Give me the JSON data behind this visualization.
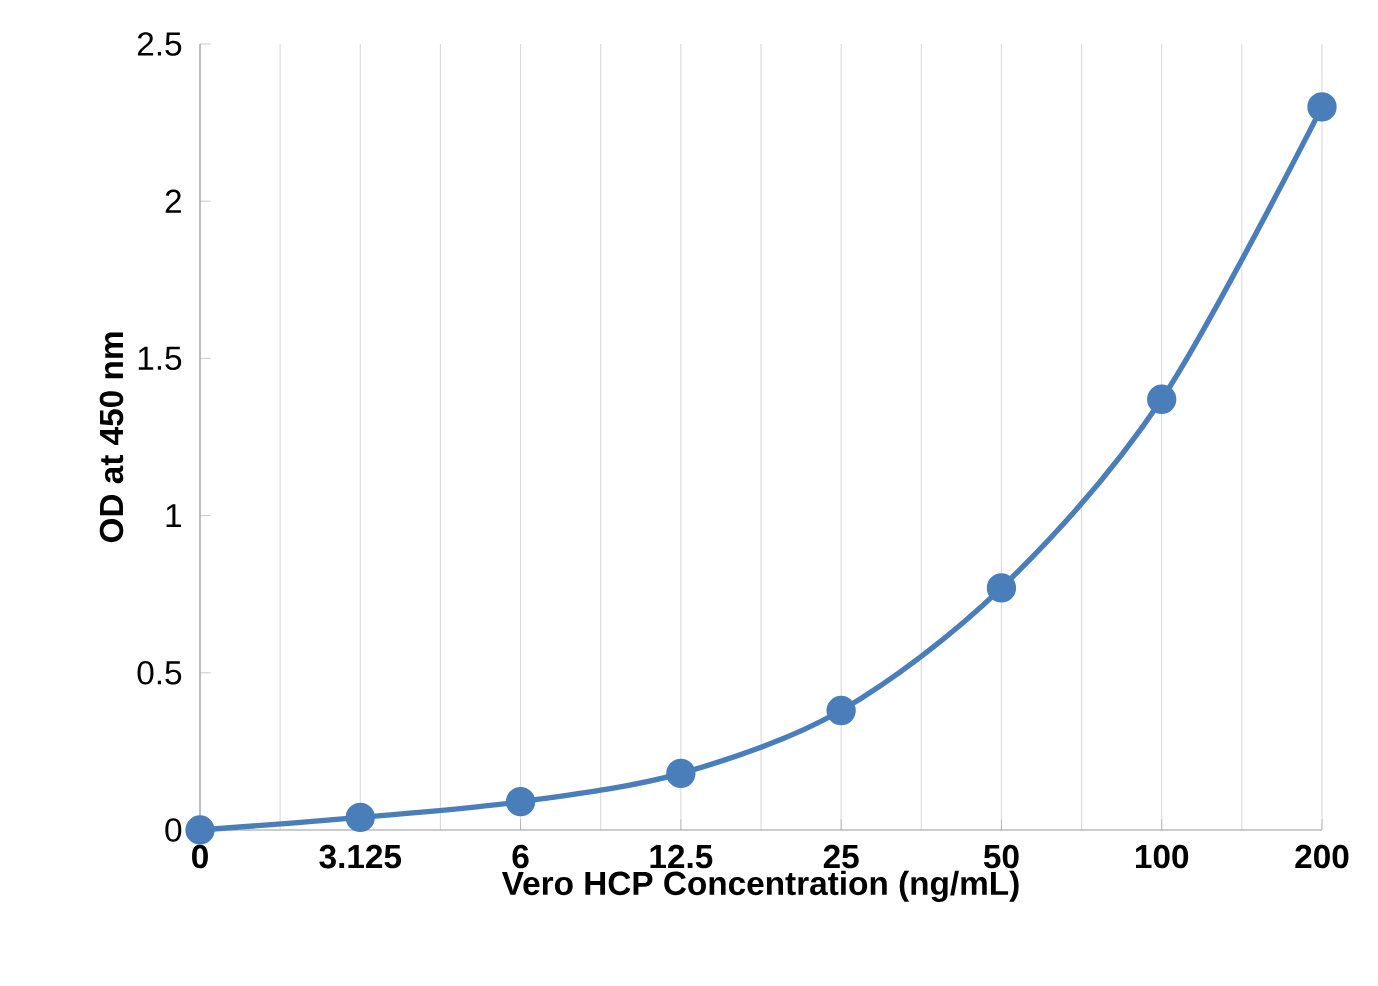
{
  "chart_data": {
    "type": "line",
    "xlabel": "Vero HCP Concentration (ng/mL)",
    "ylabel": "OD at 450 nm",
    "categories": [
      "0",
      "3.125",
      "6",
      "12.5",
      "25",
      "50",
      "100",
      "200"
    ],
    "series": [
      {
        "color": "#4a7ebb",
        "values": [
          0,
          0.04,
          0.09,
          0.18,
          0.38,
          0.77,
          1.37,
          2.3
        ]
      }
    ],
    "ylim": [
      0,
      2.5
    ],
    "yticks": [
      0,
      0.5,
      1,
      1.5,
      2,
      2.5
    ],
    "grid": "x",
    "marker": "circle",
    "line_style": "solid"
  }
}
